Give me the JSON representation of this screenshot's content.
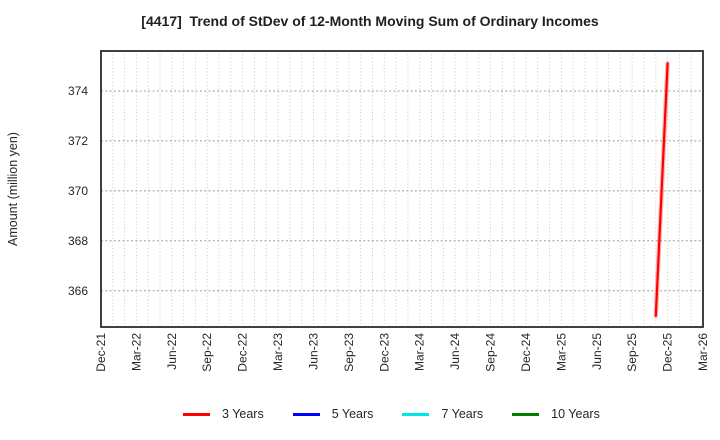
{
  "title": "[4417]  Trend of StDev of 12-Month Moving Sum of Ordinary Incomes",
  "chart_data": {
    "type": "line",
    "title": "[4417]  Trend of StDev of 12-Month Moving Sum of Ordinary Incomes",
    "xlabel": "",
    "ylabel": "Amount (million yen)",
    "x_tick_labels": [
      "Dec-21",
      "Mar-22",
      "Jun-22",
      "Sep-22",
      "Dec-22",
      "Mar-23",
      "Jun-23",
      "Sep-23",
      "Dec-23",
      "Mar-24",
      "Jun-24",
      "Sep-24",
      "Dec-24",
      "Mar-25",
      "Jun-25",
      "Sep-25",
      "Dec-25",
      "Mar-26"
    ],
    "months_per_tick": 3,
    "minor_vertical_grid": "monthly-dotted",
    "major_horizontal_grid": "dotted",
    "yticks": [
      366,
      368,
      370,
      372,
      374
    ],
    "ylim": [
      364.55,
      375.6
    ],
    "legend_position": "bottom",
    "series": [
      {
        "name": "3 Years",
        "color": "#ff0000",
        "points": [
          {
            "month": "Nov-25",
            "month_index": 47,
            "value": 365.0
          },
          {
            "month": "Dec-25",
            "month_index": 48,
            "value": 375.1
          }
        ]
      },
      {
        "name": "5 Years",
        "color": "#0000ff",
        "points": []
      },
      {
        "name": "7 Years",
        "color": "#00e5e5",
        "points": []
      },
      {
        "name": "10 Years",
        "color": "#008000",
        "points": []
      }
    ]
  },
  "legend": {
    "items": [
      {
        "label": "3 Years",
        "color": "#ff0000"
      },
      {
        "label": "5 Years",
        "color": "#0000ff"
      },
      {
        "label": "7 Years",
        "color": "#00e5e5"
      },
      {
        "label": "10 Years",
        "color": "#008000"
      }
    ]
  },
  "colors": {
    "axis_border": "#2b2b2b",
    "grid_minor": "#c9c9c9",
    "grid_major": "#9b9b9b",
    "text": "#262626",
    "background": "#ffffff"
  }
}
